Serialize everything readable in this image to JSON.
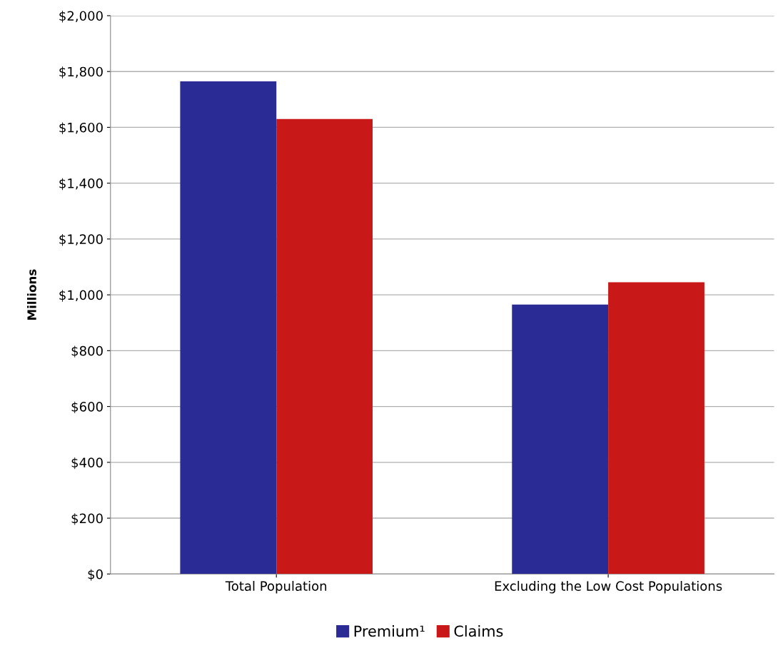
{
  "chart_data": {
    "type": "bar",
    "ylabel": "Millions",
    "categories": [
      "Total Population",
      "Excluding the Low Cost Populations"
    ],
    "series": [
      {
        "name": "Premium¹",
        "color": "#2b2b96",
        "values": [
          1765,
          965
        ]
      },
      {
        "name": "Claims",
        "color": "#c81818",
        "values": [
          1630,
          1045
        ]
      }
    ],
    "ylim": [
      0,
      2000
    ],
    "yticks": [
      {
        "value": 0,
        "label": "$0"
      },
      {
        "value": 200,
        "label": "$200"
      },
      {
        "value": 400,
        "label": "$400"
      },
      {
        "value": 600,
        "label": "$600"
      },
      {
        "value": 800,
        "label": "$800"
      },
      {
        "value": 1000,
        "label": "$1,000"
      },
      {
        "value": 1200,
        "label": "$1,200"
      },
      {
        "value": 1400,
        "label": "$1,400"
      },
      {
        "value": 1600,
        "label": "$1,600"
      },
      {
        "value": 1800,
        "label": "$1,800"
      },
      {
        "value": 2000,
        "label": "$2,000"
      }
    ],
    "grid": "y",
    "legend": "bottom"
  }
}
